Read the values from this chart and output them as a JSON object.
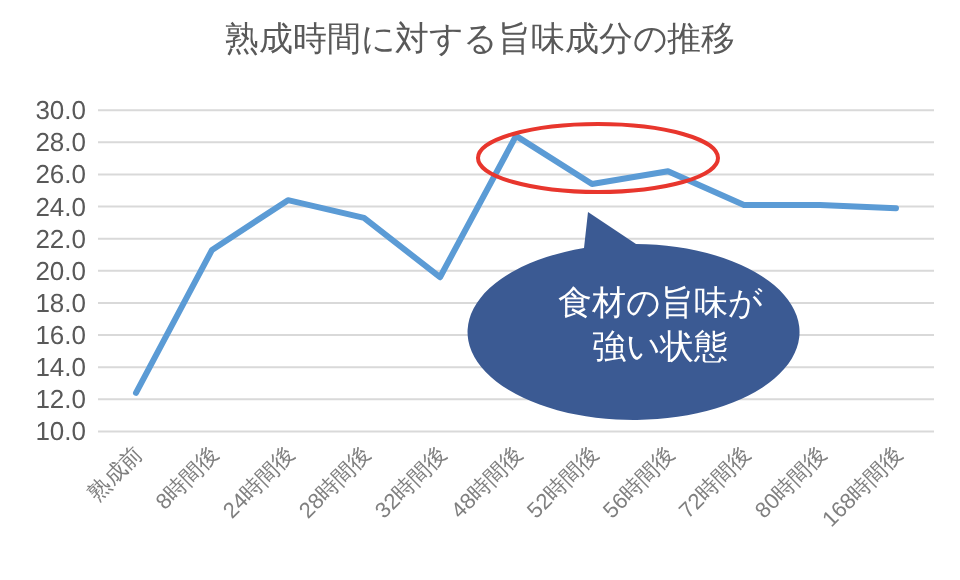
{
  "chart_data": {
    "type": "line",
    "title": "熟成時間に対する旨味成分の推移",
    "categories": [
      "熟成前",
      "8時間後",
      "24時間後",
      "28時間後",
      "32時間後",
      "48時間後",
      "52時間後",
      "56時間後",
      "72時間後",
      "80時間後",
      "168時間後"
    ],
    "series": [
      {
        "color": "#5b9bd5",
        "values": [
          12.4,
          21.3,
          24.4,
          23.3,
          19.6,
          28.4,
          25.4,
          26.2,
          24.1,
          24.1,
          23.9
        ]
      }
    ],
    "ylim": [
      10,
      30
    ],
    "yticks": [
      {
        "value": 10,
        "label": "10.0"
      },
      {
        "value": 12,
        "label": "12.0"
      },
      {
        "value": 14,
        "label": "14.0"
      },
      {
        "value": 16,
        "label": "16.0"
      },
      {
        "value": 18,
        "label": "18.0"
      },
      {
        "value": 20,
        "label": "20.0"
      },
      {
        "value": 22,
        "label": "22.0"
      },
      {
        "value": 24,
        "label": "24.0"
      },
      {
        "value": 26,
        "label": "26.0"
      },
      {
        "value": 28,
        "label": "28.0"
      },
      {
        "value": 30,
        "label": "30.0"
      }
    ],
    "grid": "y",
    "marker": "none",
    "line_style": "solid",
    "annotations": [
      "食材の旨味が強い状態"
    ]
  }
}
